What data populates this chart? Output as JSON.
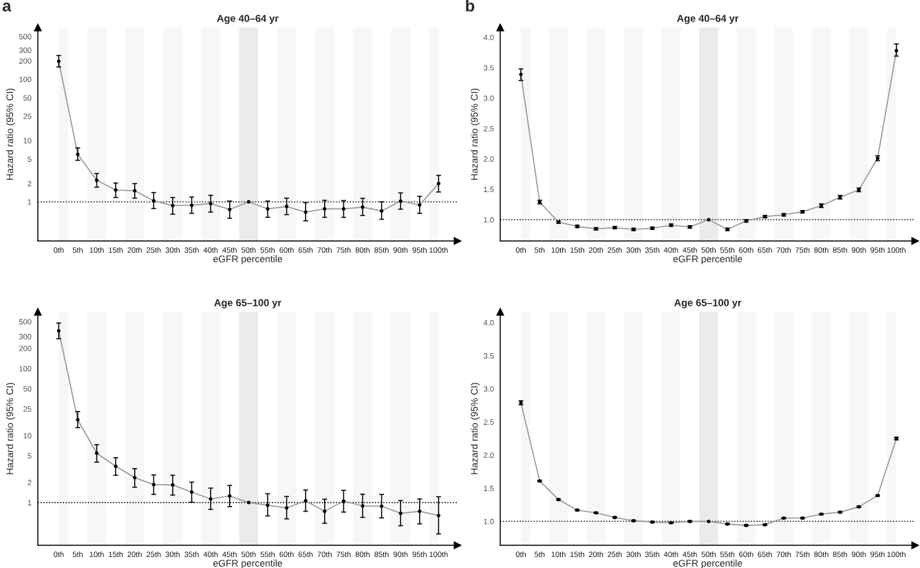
{
  "chart_data": [
    {
      "type": "line",
      "title": "Age 40–64 yr",
      "xlabel": "eGFR percentile",
      "ylabel": "Hazard ratio (95% CI)",
      "annotations": [
        "a"
      ],
      "log": "y",
      "grid": false,
      "marker": "circle",
      "line_style": "solid",
      "categories": [
        "0th",
        "5th",
        "10th",
        "15th",
        "20th",
        "25th",
        "30th",
        "35th",
        "40th",
        "45th",
        "50th",
        "55th",
        "60th",
        "65th",
        "70th",
        "75th",
        "80th",
        "85th",
        "90th",
        "95th",
        "100th"
      ],
      "ylim": [
        0.23,
        700
      ],
      "yticks": [
        1,
        2,
        5,
        10,
        25,
        50,
        100,
        200,
        300,
        500
      ],
      "ref_lines": [
        {
          "axis": "y",
          "value": 1,
          "line_style": "dotted",
          "color": "#000000"
        }
      ],
      "bands": [
        {
          "axis": "x",
          "from": "0th",
          "to": "0th",
          "color": "#f7f7f7"
        },
        {
          "axis": "x",
          "from": "10th",
          "to": "10th",
          "color": "#f7f7f7"
        },
        {
          "axis": "x",
          "from": "20th",
          "to": "20th",
          "color": "#f7f7f7"
        },
        {
          "axis": "x",
          "from": "30th",
          "to": "30th",
          "color": "#f7f7f7"
        },
        {
          "axis": "x",
          "from": "40th",
          "to": "40th",
          "color": "#f7f7f7"
        },
        {
          "axis": "x",
          "from": "50th",
          "to": "50th",
          "color": "#ebebeb"
        },
        {
          "axis": "x",
          "from": "60th",
          "to": "60th",
          "color": "#f7f7f7"
        },
        {
          "axis": "x",
          "from": "70th",
          "to": "70th",
          "color": "#f7f7f7"
        },
        {
          "axis": "x",
          "from": "80th",
          "to": "80th",
          "color": "#f7f7f7"
        },
        {
          "axis": "x",
          "from": "90th",
          "to": "90th",
          "color": "#f7f7f7"
        },
        {
          "axis": "x",
          "from": "100th",
          "to": "100th",
          "color": "#f7f7f7"
        }
      ],
      "series": [
        {
          "color": "#999999",
          "values": [
            197,
            5.98,
            2.25,
            1.56,
            1.52,
            1.04,
            0.87,
            0.88,
            0.94,
            0.75,
            1,
            0.77,
            0.84,
            0.68,
            0.77,
            0.77,
            0.82,
            0.71,
            1.03,
            0.89,
            1.99
          ],
          "errors": [
            [
              159,
              245
            ],
            [
              4.77,
              7.6
            ],
            [
              1.74,
              2.9
            ],
            [
              1.18,
              2.03
            ],
            [
              1.15,
              1.99
            ],
            [
              0.78,
              1.42
            ],
            [
              0.63,
              1.18
            ],
            [
              0.65,
              1.2
            ],
            [
              0.68,
              1.28
            ],
            [
              0.54,
              1.03
            ],
            null,
            [
              0.56,
              1.03
            ],
            [
              0.62,
              1.15
            ],
            [
              0.49,
              0.97
            ],
            [
              0.56,
              1.06
            ],
            [
              0.56,
              1.05
            ],
            [
              0.6,
              1.14
            ],
            [
              0.52,
              1.0
            ],
            [
              0.76,
              1.4
            ],
            [
              0.65,
              1.23
            ],
            [
              1.45,
              2.71
            ]
          ]
        }
      ]
    },
    {
      "type": "line",
      "title": "Age 40–64 yr",
      "xlabel": "eGFR percentile",
      "ylabel": "Hazard ratio (95% CI)",
      "annotations": [
        "b"
      ],
      "grid": false,
      "marker": "circle",
      "line_style": "solid",
      "categories": [
        "0th",
        "5th",
        "10th",
        "15th",
        "20th",
        "25th",
        "30th",
        "35th",
        "40th",
        "45th",
        "50th",
        "55th",
        "60th",
        "65th",
        "70th",
        "75th",
        "80th",
        "85th",
        "90th",
        "95th",
        "100th"
      ],
      "ylim": [
        0.65,
        4.16
      ],
      "yticks": [
        {
          "value": 1,
          "label": "1.0"
        },
        {
          "value": 1.5,
          "label": "1.5"
        },
        {
          "value": 2,
          "label": "2.0"
        },
        {
          "value": 2.5,
          "label": "2.5"
        },
        {
          "value": 3,
          "label": "3.0"
        },
        {
          "value": 3.5,
          "label": "3.5"
        },
        {
          "value": 4,
          "label": "4.0"
        }
      ],
      "ref_lines": [
        {
          "axis": "y",
          "value": 1,
          "line_style": "dotted",
          "color": "#000000"
        }
      ],
      "bands": [
        {
          "axis": "x",
          "from": "0th",
          "to": "0th",
          "color": "#f7f7f7"
        },
        {
          "axis": "x",
          "from": "10th",
          "to": "10th",
          "color": "#f7f7f7"
        },
        {
          "axis": "x",
          "from": "20th",
          "to": "20th",
          "color": "#f7f7f7"
        },
        {
          "axis": "x",
          "from": "30th",
          "to": "30th",
          "color": "#f7f7f7"
        },
        {
          "axis": "x",
          "from": "40th",
          "to": "40th",
          "color": "#f7f7f7"
        },
        {
          "axis": "x",
          "from": "50th",
          "to": "50th",
          "color": "#ebebeb"
        },
        {
          "axis": "x",
          "from": "60th",
          "to": "60th",
          "color": "#f7f7f7"
        },
        {
          "axis": "x",
          "from": "70th",
          "to": "70th",
          "color": "#f7f7f7"
        },
        {
          "axis": "x",
          "from": "80th",
          "to": "80th",
          "color": "#f7f7f7"
        },
        {
          "axis": "x",
          "from": "90th",
          "to": "90th",
          "color": "#f7f7f7"
        },
        {
          "axis": "x",
          "from": "100th",
          "to": "100th",
          "color": "#f7f7f7"
        }
      ],
      "series": [
        {
          "color": "#999999",
          "values": [
            3.39,
            1.29,
            0.96,
            0.89,
            0.85,
            0.87,
            0.84,
            0.86,
            0.91,
            0.88,
            1,
            0.84,
            0.98,
            1.05,
            1.08,
            1.13,
            1.23,
            1.37,
            1.49,
            2.01,
            3.78
          ],
          "errors": [
            [
              3.29,
              3.48
            ],
            0.03,
            0.02,
            0.02,
            0.02,
            0.02,
            0.02,
            0.02,
            0.02,
            0.02,
            null,
            0.02,
            0.02,
            0.02,
            0.02,
            0.02,
            0.03,
            0.03,
            0.03,
            0.04,
            [
              3.69,
              3.89
            ]
          ]
        }
      ]
    },
    {
      "type": "line",
      "title": "Age 65–100 yr",
      "xlabel": "eGFR percentile",
      "ylabel": "Hazard ratio (95% CI)",
      "log": "y",
      "grid": false,
      "marker": "circle",
      "line_style": "solid",
      "categories": [
        "0th",
        "5th",
        "10th",
        "15th",
        "20th",
        "25th",
        "30th",
        "35th",
        "40th",
        "45th",
        "50th",
        "55th",
        "60th",
        "65th",
        "70th",
        "75th",
        "80th",
        "85th",
        "90th",
        "95th",
        "100th"
      ],
      "ylim": [
        0.23,
        700
      ],
      "yticks": [
        1,
        2,
        5,
        10,
        25,
        50,
        100,
        200,
        300,
        500
      ],
      "ref_lines": [
        {
          "axis": "y",
          "value": 1,
          "line_style": "dotted",
          "color": "#000000"
        }
      ],
      "bands": [
        {
          "axis": "x",
          "from": "0th",
          "to": "0th",
          "color": "#f7f7f7"
        },
        {
          "axis": "x",
          "from": "10th",
          "to": "10th",
          "color": "#f7f7f7"
        },
        {
          "axis": "x",
          "from": "20th",
          "to": "20th",
          "color": "#f7f7f7"
        },
        {
          "axis": "x",
          "from": "30th",
          "to": "30th",
          "color": "#f7f7f7"
        },
        {
          "axis": "x",
          "from": "40th",
          "to": "40th",
          "color": "#f7f7f7"
        },
        {
          "axis": "x",
          "from": "50th",
          "to": "50th",
          "color": "#ebebeb"
        },
        {
          "axis": "x",
          "from": "60th",
          "to": "60th",
          "color": "#f7f7f7"
        },
        {
          "axis": "x",
          "from": "70th",
          "to": "70th",
          "color": "#f7f7f7"
        },
        {
          "axis": "x",
          "from": "80th",
          "to": "80th",
          "color": "#f7f7f7"
        },
        {
          "axis": "x",
          "from": "90th",
          "to": "90th",
          "color": "#f7f7f7"
        },
        {
          "axis": "x",
          "from": "100th",
          "to": "100th",
          "color": "#f7f7f7"
        }
      ],
      "series": [
        {
          "color": "#999999",
          "values": [
            365,
            17.2,
            5.45,
            3.47,
            2.35,
            1.85,
            1.83,
            1.43,
            1.13,
            1.25,
            1,
            0.91,
            0.83,
            1.06,
            0.74,
            1.05,
            0.89,
            0.88,
            0.69,
            0.74,
            0.64
          ],
          "errors": [
            [
              279,
              477
            ],
            [
              13.1,
              22.8
            ],
            [
              4.0,
              7.3
            ],
            [
              2.55,
              4.67
            ],
            [
              1.69,
              3.2
            ],
            [
              1.32,
              2.58
            ],
            [
              1.29,
              2.55
            ],
            [
              1.01,
              2.01
            ],
            [
              0.79,
              1.64
            ],
            [
              0.87,
              1.8
            ],
            null,
            [
              0.63,
              1.35
            ],
            [
              0.57,
              1.23
            ],
            [
              0.74,
              1.54
            ],
            [
              0.49,
              1.12
            ],
            [
              0.72,
              1.52
            ],
            [
              0.6,
              1.33
            ],
            [
              0.59,
              1.32
            ],
            [
              0.45,
              1.07
            ],
            [
              0.48,
              1.13
            ],
            [
              0.34,
              1.22
            ]
          ]
        }
      ]
    },
    {
      "type": "line",
      "title": "Age 65–100 yr",
      "xlabel": "eGFR percentile",
      "ylabel": "Hazard ratio (95% CI)",
      "grid": false,
      "marker": "circle",
      "line_style": "solid",
      "categories": [
        "0th",
        "5th",
        "10th",
        "15th",
        "20th",
        "25th",
        "30th",
        "35th",
        "40th",
        "45th",
        "50th",
        "55th",
        "60th",
        "65th",
        "70th",
        "75th",
        "80th",
        "85th",
        "90th",
        "95th",
        "100th"
      ],
      "ylim": [
        0.64,
        4.16
      ],
      "yticks": [
        {
          "value": 1,
          "label": "1.0"
        },
        {
          "value": 1.5,
          "label": "1.5"
        },
        {
          "value": 2,
          "label": "2.0"
        },
        {
          "value": 2.5,
          "label": "2.5"
        },
        {
          "value": 3,
          "label": "3.0"
        },
        {
          "value": 3.5,
          "label": "3.5"
        },
        {
          "value": 4,
          "label": "4.0"
        }
      ],
      "ref_lines": [
        {
          "axis": "y",
          "value": 1,
          "line_style": "dotted",
          "color": "#000000"
        }
      ],
      "bands": [
        {
          "axis": "x",
          "from": "0th",
          "to": "0th",
          "color": "#f7f7f7"
        },
        {
          "axis": "x",
          "from": "10th",
          "to": "10th",
          "color": "#f7f7f7"
        },
        {
          "axis": "x",
          "from": "20th",
          "to": "20th",
          "color": "#f7f7f7"
        },
        {
          "axis": "x",
          "from": "30th",
          "to": "30th",
          "color": "#f7f7f7"
        },
        {
          "axis": "x",
          "from": "40th",
          "to": "40th",
          "color": "#f7f7f7"
        },
        {
          "axis": "x",
          "from": "50th",
          "to": "50th",
          "color": "#ebebeb"
        },
        {
          "axis": "x",
          "from": "60th",
          "to": "60th",
          "color": "#f7f7f7"
        },
        {
          "axis": "x",
          "from": "70th",
          "to": "70th",
          "color": "#f7f7f7"
        },
        {
          "axis": "x",
          "from": "80th",
          "to": "80th",
          "color": "#f7f7f7"
        },
        {
          "axis": "x",
          "from": "90th",
          "to": "90th",
          "color": "#f7f7f7"
        },
        {
          "axis": "x",
          "from": "100th",
          "to": "100th",
          "color": "#f7f7f7"
        }
      ],
      "series": [
        {
          "color": "#999999",
          "values": [
            2.79,
            1.61,
            1.33,
            1.17,
            1.13,
            1.06,
            1.01,
            0.99,
            0.98,
            1.0,
            1,
            0.96,
            0.94,
            0.95,
            1.05,
            1.05,
            1.11,
            1.14,
            1.22,
            1.39,
            2.25
          ],
          "errors": [
            0.03,
            0.01,
            0.01,
            0.01,
            0.01,
            0.01,
            0.01,
            0.01,
            0.01,
            0.01,
            null,
            0.01,
            0.01,
            0.01,
            0.01,
            0.01,
            0.01,
            0.01,
            0.01,
            0.01,
            0.02
          ]
        }
      ]
    }
  ]
}
